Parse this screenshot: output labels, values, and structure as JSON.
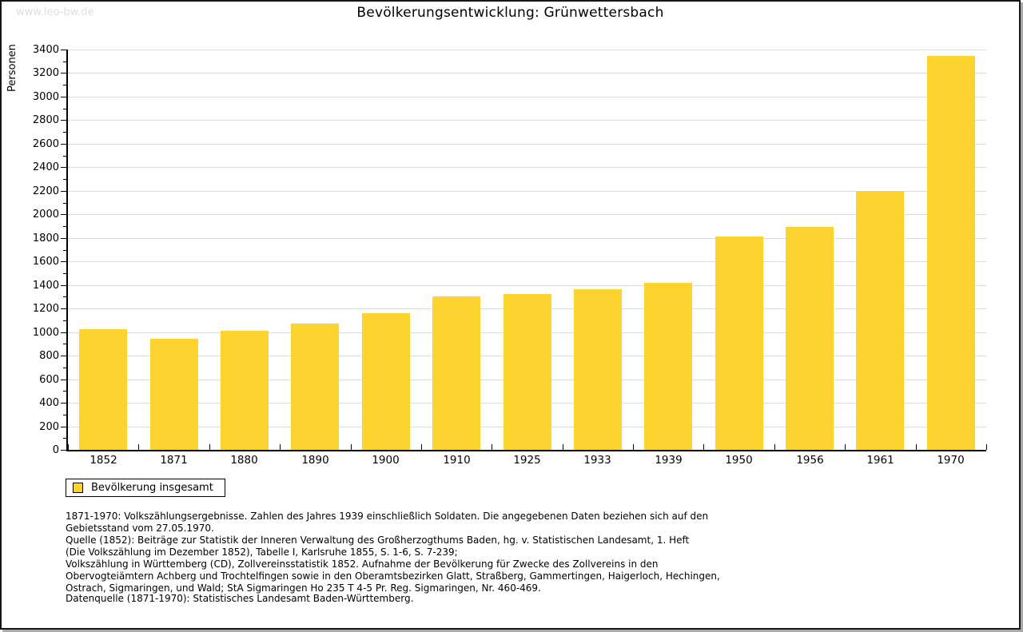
{
  "page": {
    "watermark": "www.leo-bw.de",
    "title": "Bevölkerungsentwicklung: Grünwettersbach"
  },
  "chart_data": {
    "type": "bar",
    "title": "Bevölkerungsentwicklung: Grünwettersbach",
    "xlabel": "",
    "ylabel": "Personen",
    "categories": [
      "1852",
      "1871",
      "1880",
      "1890",
      "1900",
      "1910",
      "1925",
      "1933",
      "1939",
      "1950",
      "1956",
      "1961",
      "1970"
    ],
    "series": [
      {
        "name": "Bevölkerung insgesamt",
        "values": [
          1025,
          945,
          1013,
          1070,
          1163,
          1305,
          1326,
          1367,
          1415,
          1810,
          1895,
          2200,
          3345
        ]
      }
    ],
    "ylim": [
      0,
      3400
    ],
    "yticks": [
      0,
      200,
      400,
      600,
      800,
      1000,
      1200,
      1400,
      1600,
      1800,
      2000,
      2200,
      2400,
      2600,
      2800,
      3000,
      3200,
      3400
    ],
    "ytick_minor_step": 100,
    "grid": true,
    "legend_position": "bottom-left"
  },
  "legend": {
    "items": [
      {
        "label": "Bevölkerung insgesamt",
        "color": "#FCD32F"
      }
    ]
  },
  "footnotes": {
    "lines": [
      "1871-1970: Volkszählungsergebnisse. Zahlen des Jahres 1939 einschließlich Soldaten. Die angegebenen Daten beziehen sich auf den",
      "Gebietsstand vom 27.05.1970.",
      "Quelle (1852): Beiträge zur Statistik der Inneren Verwaltung des Großherzogthums Baden, hg. v. Statistischen Landesamt, 1. Heft",
      "(Die Volkszählung im Dezember 1852), Tabelle I, Karlsruhe 1855, S. 1-6, S. 7-239;",
      "Volkszählung in Württemberg (CD), Zollvereinsstatistik 1852. Aufnahme der Bevölkerung für Zwecke des Zollvereins in den",
      "Obervogteiämtern Achberg und Trochtelfingen sowie in den Oberamtsbezirken Glatt, Straßberg, Gammertingen, Haigerloch, Hechingen,",
      "Ostrach, Sigmaringen, und Wald; StA Sigmaringen Ho 235 T 4-5 Pr. Reg. Sigmaringen, Nr. 460-469."
    ],
    "datasource": "Datenquelle (1871-1970): Statistisches Landesamt Baden-Württemberg."
  },
  "colors": {
    "bar": "#FCD32F",
    "grid": "#DCDCDC",
    "axis": "#000000",
    "watermark": "#DDDDDD"
  }
}
